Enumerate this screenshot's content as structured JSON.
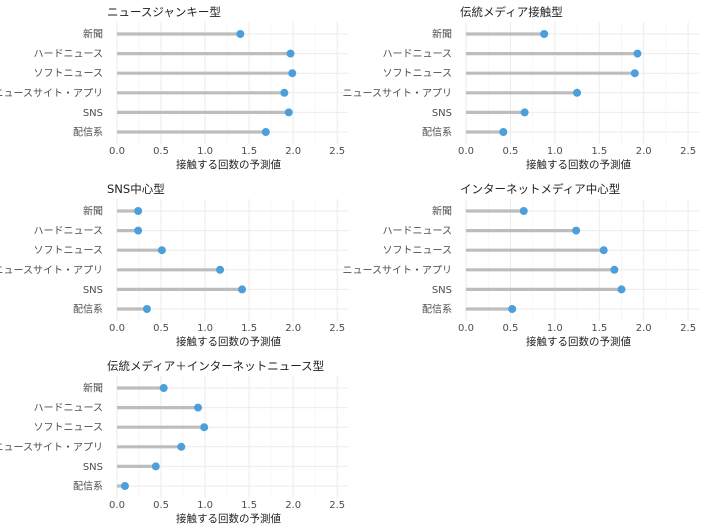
{
  "chart_data": [
    {
      "type": "lollipop",
      "title": "ニュースジャンキー型",
      "categories": [
        "新聞",
        "ハードニュース",
        "ソフトニュース",
        "ニュースサイト・アプリ",
        "SNS",
        "配信系"
      ],
      "values": [
        1.4,
        1.97,
        1.99,
        1.9,
        1.95,
        1.69
      ],
      "xlabel": "接触する回数の予測値",
      "xticks": [
        "0.0",
        "0.5",
        "1.0",
        "1.5",
        "2.0",
        "2.5"
      ],
      "xlim": [
        0,
        2.6
      ]
    },
    {
      "type": "lollipop",
      "title": "伝統メディア接触型",
      "categories": [
        "新聞",
        "ハードニュース",
        "ソフトニュース",
        "ニュースサイト・アプリ",
        "SNS",
        "配信系"
      ],
      "values": [
        0.88,
        1.93,
        1.9,
        1.25,
        0.66,
        0.42
      ],
      "xlabel": "接触する回数の予測値",
      "xticks": [
        "0.0",
        "0.5",
        "1.0",
        "1.5",
        "2.0",
        "2.5"
      ],
      "xlim": [
        0,
        2.6
      ]
    },
    {
      "type": "lollipop",
      "title": "SNS中心型",
      "categories": [
        "新聞",
        "ハードニュース",
        "ソフトニュース",
        "ニュースサイト・アプリ",
        "SNS",
        "配信系"
      ],
      "values": [
        0.24,
        0.24,
        0.51,
        1.17,
        1.42,
        0.34
      ],
      "xlabel": "接触する回数の予測値",
      "xticks": [
        "0.0",
        "0.5",
        "1.0",
        "1.5",
        "2.0",
        "2.5"
      ],
      "xlim": [
        0,
        2.6
      ]
    },
    {
      "type": "lollipop",
      "title": "インターネットメディア中心型",
      "categories": [
        "新聞",
        "ハードニュース",
        "ソフトニュース",
        "ニュースサイト・アプリ",
        "SNS",
        "配信系"
      ],
      "values": [
        0.65,
        1.24,
        1.55,
        1.67,
        1.75,
        0.52
      ],
      "xlabel": "接触する回数の予測値",
      "xticks": [
        "0.0",
        "0.5",
        "1.0",
        "1.5",
        "2.0",
        "2.5"
      ],
      "xlim": [
        0,
        2.6
      ]
    },
    {
      "type": "lollipop",
      "title": "伝統メディア＋インターネットニュース型",
      "categories": [
        "新聞",
        "ハードニュース",
        "ソフトニュース",
        "ニュースサイト・アプリ",
        "SNS",
        "配信系"
      ],
      "values": [
        0.53,
        0.92,
        0.99,
        0.73,
        0.44,
        0.09
      ],
      "xlabel": "接触する回数の予測値",
      "xticks": [
        "0.0",
        "0.5",
        "1.0",
        "1.5",
        "2.0",
        "2.5"
      ],
      "xlim": [
        0,
        2.6
      ]
    }
  ],
  "colors": {
    "stem": "#bdbdbd",
    "point": "#4d9fdb",
    "grid": "#ebebeb"
  }
}
